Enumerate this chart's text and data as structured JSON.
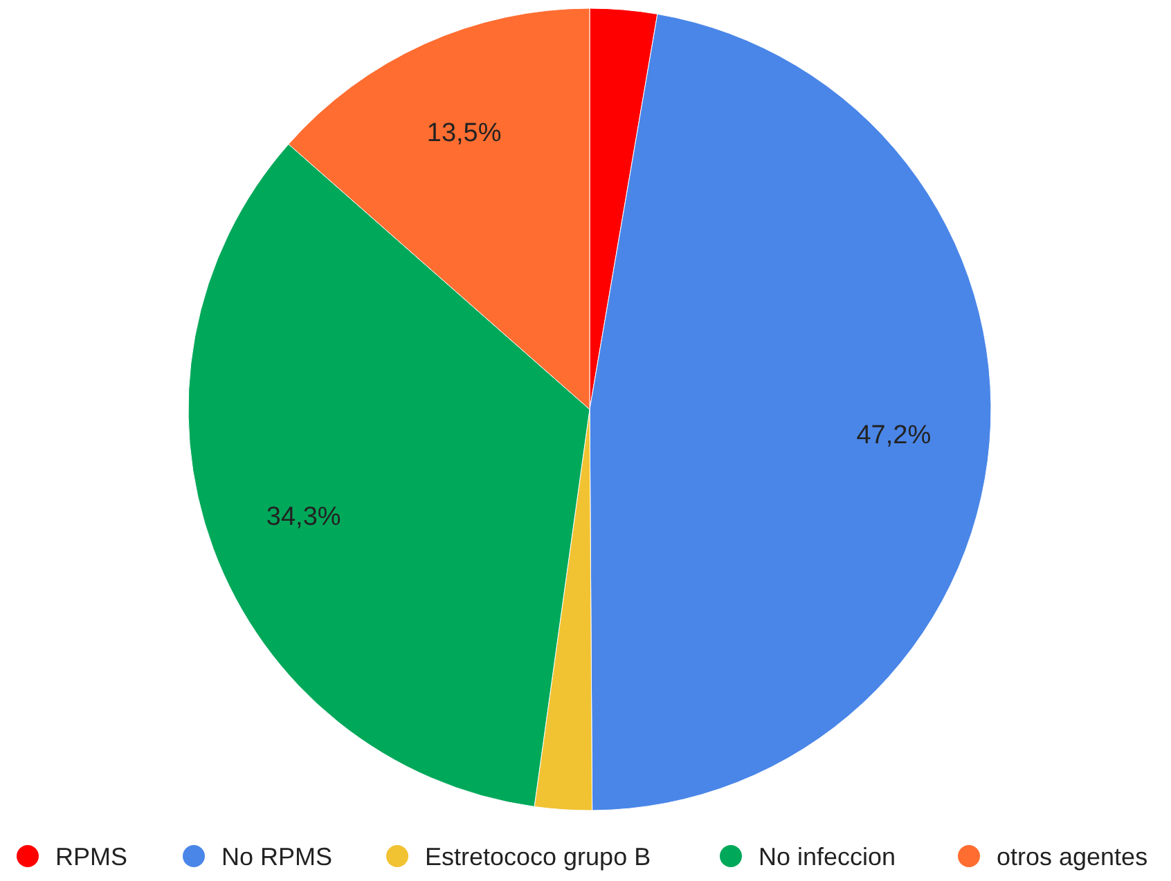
{
  "chart_data": {
    "type": "pie",
    "categories": [
      "RPMS",
      "No RPMS",
      "Estretococo grupo B",
      "No infeccion",
      "otros agentes"
    ],
    "values": [
      2.7,
      47.2,
      2.3,
      34.3,
      13.5
    ],
    "value_labels": [
      null,
      "47,2%",
      null,
      "34,3%",
      "13,5%"
    ],
    "colors": [
      "#ff0000",
      "#4a86e8",
      "#f1c232",
      "#00a85a",
      "#ff6d31"
    ],
    "legend": "bottom"
  }
}
